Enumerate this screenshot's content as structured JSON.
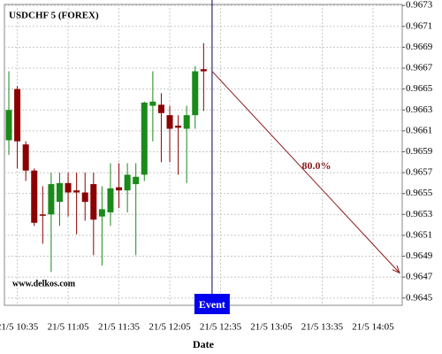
{
  "chart_data": {
    "type": "candlestick",
    "title": "USDCHF 5 (FOREX)",
    "watermark": "www.delkos.com",
    "x_label": "Date",
    "categories": [
      null,
      "21/5 10:35",
      null,
      null,
      null,
      null,
      null,
      "21/5 11:05",
      null,
      null,
      null,
      null,
      null,
      "21/5 11:35",
      null,
      null,
      null,
      null,
      null,
      "21/5 12:05",
      null,
      null,
      null,
      null,
      null,
      "21/5 12:35",
      null,
      null,
      null,
      null,
      null,
      "21/5 13:05",
      null,
      null,
      null,
      null,
      null,
      "21/5 13:35",
      null,
      null,
      null,
      null,
      null,
      "21/5 14:05"
    ],
    "open": [
      0.96601,
      0.9665,
      0.96597,
      0.96572,
      0.9653,
      0.9653,
      0.96542,
      0.9656,
      0.96553,
      0.96551,
      0.96559,
      0.96528,
      0.96532,
      0.96556,
      0.96553,
      0.96559,
      0.96568,
      0.96634,
      0.96635,
      0.96625,
      0.96615,
      0.96612,
      0.96625,
      0.96669,
      null,
      null,
      null,
      null,
      null,
      null,
      null,
      null,
      null,
      null,
      null,
      null,
      null,
      null,
      null,
      null,
      null,
      null,
      null,
      null
    ],
    "high": [
      0.96667,
      0.96653,
      0.966,
      0.96574,
      0.96557,
      0.9657,
      0.9657,
      0.9657,
      0.9657,
      0.9657,
      0.9657,
      0.96557,
      0.96579,
      0.96579,
      0.96579,
      0.96579,
      0.96638,
      0.96667,
      0.96646,
      0.96634,
      0.96625,
      0.96634,
      0.96672,
      0.96694,
      null,
      null,
      null,
      null,
      null,
      null,
      null,
      null,
      null,
      null,
      null,
      null,
      null,
      null,
      null,
      null,
      null,
      null,
      null,
      null
    ],
    "low": [
      0.96587,
      0.96574,
      0.96562,
      0.96519,
      0.96502,
      0.96475,
      0.96519,
      0.96528,
      0.96511,
      0.96524,
      0.96491,
      0.96481,
      0.96519,
      0.96536,
      0.96532,
      0.96491,
      0.96562,
      0.966,
      0.9658,
      0.9658,
      0.96568,
      0.9656,
      0.96612,
      0.96629,
      null,
      null,
      null,
      null,
      null,
      null,
      null,
      null,
      null,
      null,
      null,
      null,
      null,
      null,
      null,
      null,
      null,
      null,
      null,
      null
    ],
    "close": [
      0.9663,
      0.966,
      0.96572,
      0.96522,
      0.96529,
      0.96559,
      0.9656,
      0.96551,
      0.96551,
      0.96542,
      0.96525,
      0.96535,
      0.96555,
      0.96553,
      0.96568,
      0.96566,
      0.96637,
      0.96638,
      0.96627,
      0.96612,
      0.96613,
      0.96625,
      0.96667,
      0.96667,
      null,
      null,
      null,
      null,
      null,
      null,
      null,
      null,
      null,
      null,
      null,
      null,
      null,
      null,
      null,
      null,
      null,
      null,
      null,
      null
    ],
    "up_color": "#1a8a1a",
    "down_color": "#8b0000",
    "event": {
      "label": "Event",
      "color": "#0000ee"
    },
    "projection": {
      "label": "80.0%",
      "target": 0.96474,
      "color": "#8b1a1a"
    },
    "ylim": [
      0.96443,
      0.96731
    ],
    "yticks": [
      0.9645,
      0.9647,
      0.9649,
      0.9651,
      0.9653,
      0.9655,
      0.9657,
      0.9659,
      0.9661,
      0.9663,
      0.9665,
      0.9667,
      0.9669,
      0.9671,
      0.9673
    ],
    "grid": true
  }
}
